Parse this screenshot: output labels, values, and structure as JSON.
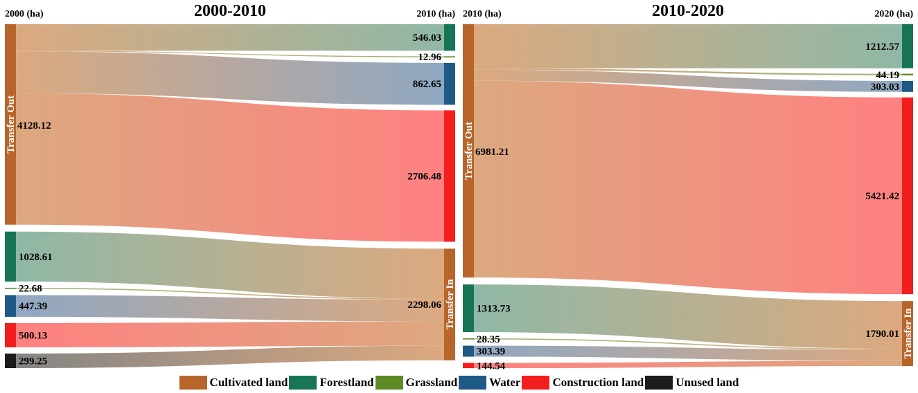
{
  "colors": {
    "cultivated": "#b7652b",
    "forest": "#177555",
    "grass": "#5d8a25",
    "water": "#1e5a85",
    "construction": "#f21d1d",
    "unused": "#1b1b1b",
    "cultivated_flow": "#dca97f",
    "forest_flow": "#8fb8a6",
    "grass_flow": "#9fb57a",
    "water_flow": "#8fa8c2",
    "construction_flow": "#ff8080",
    "unused_flow": "#858585"
  },
  "legend": [
    {
      "key": "cultivated",
      "label": "Cultivated land"
    },
    {
      "key": "forest",
      "label": "Forestland"
    },
    {
      "key": "grass",
      "label": "Grassland"
    },
    {
      "key": "water",
      "label": "Water"
    },
    {
      "key": "construction",
      "label": "Construction land"
    },
    {
      "key": "unused",
      "label": "Unused land"
    }
  ],
  "chart_data": [
    {
      "type": "sankey",
      "title": "2000-2010",
      "left_axis_label": "2000 (ha)",
      "right_axis_label": "2010 (ha)",
      "out_label": "Transfer Out",
      "in_label": "Transfer In",
      "transfer_out": {
        "source": "cultivated",
        "total": "4128.12",
        "targets": [
          {
            "key": "forest",
            "value": 546.03,
            "label": "546.03"
          },
          {
            "key": "grass",
            "value": 12.96,
            "label": "12.96"
          },
          {
            "key": "water",
            "value": 862.65,
            "label": "862.65"
          },
          {
            "key": "construction",
            "value": 2706.48,
            "label": "2706.48"
          }
        ]
      },
      "transfer_in": {
        "target": "cultivated",
        "total": "2298.06",
        "sources": [
          {
            "key": "forest",
            "value": 1028.61,
            "label": "1028.61"
          },
          {
            "key": "grass",
            "value": 22.68,
            "label": "22.68"
          },
          {
            "key": "water",
            "value": 447.39,
            "label": "447.39"
          },
          {
            "key": "construction",
            "value": 500.13,
            "label": "500.13"
          },
          {
            "key": "unused",
            "value": 299.25,
            "label": "299.25"
          }
        ]
      }
    },
    {
      "type": "sankey",
      "title": "2010-2020",
      "left_axis_label": "2010 (ha)",
      "right_axis_label": "2020 (ha)",
      "out_label": "Transfer Out",
      "in_label": "Transfer In",
      "transfer_out": {
        "source": "cultivated",
        "total": "6981.21",
        "targets": [
          {
            "key": "forest",
            "value": 1212.57,
            "label": "1212.57"
          },
          {
            "key": "grass",
            "value": 44.19,
            "label": "44.19"
          },
          {
            "key": "water",
            "value": 303.03,
            "label": "303.03"
          },
          {
            "key": "construction",
            "value": 5421.42,
            "label": "5421.42"
          }
        ]
      },
      "transfer_in": {
        "target": "cultivated",
        "total": "1790.01",
        "sources": [
          {
            "key": "forest",
            "value": 1313.73,
            "label": "1313.73"
          },
          {
            "key": "grass",
            "value": 28.35,
            "label": "28.35"
          },
          {
            "key": "water",
            "value": 303.39,
            "label": "303.39"
          },
          {
            "key": "construction",
            "value": 144.54,
            "label": "144.54"
          }
        ]
      }
    }
  ]
}
